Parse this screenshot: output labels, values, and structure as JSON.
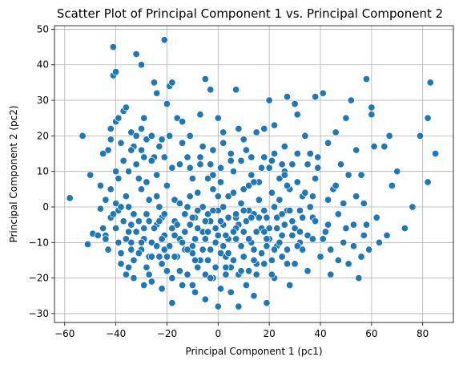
{
  "chart_data": {
    "type": "scatter",
    "title": "Scatter Plot of Principal Component 1 vs. Principal Component 2",
    "xlabel": "Principal Component 1 (pc1)",
    "ylabel": "Principal Component 2 (pc2)",
    "xlim": [
      -64,
      92
    ],
    "ylim": [
      -32.5,
      51
    ],
    "xticks": [
      -60,
      -40,
      -20,
      0,
      20,
      40,
      60,
      80
    ],
    "yticks": [
      -30,
      -20,
      -10,
      0,
      10,
      20,
      30,
      40,
      50
    ],
    "grid": true,
    "color": "#1f77b4",
    "points": [
      [
        -58,
        2.5
      ],
      [
        -53,
        20
      ],
      [
        -51,
        -10.5
      ],
      [
        -50,
        9
      ],
      [
        -49,
        -7.5
      ],
      [
        -47,
        -8
      ],
      [
        -46,
        -0.5
      ],
      [
        -45,
        -6
      ],
      [
        -44,
        -8
      ],
      [
        -43,
        16
      ],
      [
        -42,
        19
      ],
      [
        -42,
        -3
      ],
      [
        -41,
        37
      ],
      [
        -41,
        45
      ],
      [
        -40,
        24
      ],
      [
        -40,
        38
      ],
      [
        -40,
        10
      ],
      [
        -39,
        25
      ],
      [
        -39,
        -1
      ],
      [
        -38,
        -16
      ],
      [
        -37,
        13
      ],
      [
        -37,
        27
      ],
      [
        -36,
        28
      ],
      [
        -36,
        -19
      ],
      [
        -35,
        -7
      ],
      [
        -34,
        21
      ],
      [
        -34,
        -10
      ],
      [
        -33,
        -2
      ],
      [
        -32,
        43
      ],
      [
        -32,
        20
      ],
      [
        -31,
        -4
      ],
      [
        -30,
        40
      ],
      [
        -30,
        16
      ],
      [
        -30,
        -12
      ],
      [
        -29,
        25
      ],
      [
        -29,
        -22
      ],
      [
        -28,
        19
      ],
      [
        -28,
        7
      ],
      [
        -27,
        -14
      ],
      [
        -26,
        -10
      ],
      [
        -25,
        35
      ],
      [
        -25,
        14
      ],
      [
        -24,
        -5
      ],
      [
        -24,
        32
      ],
      [
        -23,
        0
      ],
      [
        -22,
        -3
      ],
      [
        -22,
        -16
      ],
      [
        -21,
        47
      ],
      [
        -21,
        14
      ],
      [
        -20,
        29
      ],
      [
        -20,
        -18
      ],
      [
        -19,
        34
      ],
      [
        -18,
        35
      ],
      [
        -18,
        -27
      ],
      [
        -17,
        2
      ],
      [
        -16,
        25
      ],
      [
        -15,
        -9
      ],
      [
        -14,
        24
      ],
      [
        -13,
        -12
      ],
      [
        -12,
        0
      ],
      [
        -12,
        14
      ],
      [
        -11,
        20
      ],
      [
        -10,
        -13
      ],
      [
        -10,
        -22
      ],
      [
        -9,
        -3
      ],
      [
        -8,
        4
      ],
      [
        -8,
        -17
      ],
      [
        -7,
        26
      ],
      [
        -7,
        12
      ],
      [
        -6,
        -7
      ],
      [
        -5,
        36
      ],
      [
        -5,
        -26
      ],
      [
        -4,
        -15
      ],
      [
        -4,
        8
      ],
      [
        -3,
        33
      ],
      [
        -3,
        -4
      ],
      [
        -2,
        -20
      ],
      [
        -2,
        16
      ],
      [
        -1,
        -10
      ],
      [
        0,
        -1
      ],
      [
        0,
        25
      ],
      [
        0,
        -28
      ],
      [
        1,
        7
      ],
      [
        1,
        -13
      ],
      [
        2,
        -5
      ],
      [
        2,
        18
      ],
      [
        3,
        -19
      ],
      [
        4,
        3
      ],
      [
        4,
        -9
      ],
      [
        5,
        -24
      ],
      [
        5,
        13
      ],
      [
        6,
        -15
      ],
      [
        7,
        33
      ],
      [
        7,
        -3
      ],
      [
        8,
        22
      ],
      [
        8,
        -28
      ],
      [
        9,
        -11
      ],
      [
        10,
        5
      ],
      [
        10,
        -7
      ],
      [
        11,
        16
      ],
      [
        12,
        -18
      ],
      [
        12,
        -1
      ],
      [
        13,
        9
      ],
      [
        14,
        -25
      ],
      [
        14,
        -12
      ],
      [
        15,
        21
      ],
      [
        16,
        2
      ],
      [
        17,
        -6
      ],
      [
        18,
        14
      ],
      [
        18,
        -16
      ],
      [
        19,
        -27
      ],
      [
        20,
        30
      ],
      [
        20,
        -9
      ],
      [
        21,
        4
      ],
      [
        22,
        23
      ],
      [
        22,
        -20
      ],
      [
        23,
        -3
      ],
      [
        24,
        8
      ],
      [
        25,
        -14
      ],
      [
        26,
        17
      ],
      [
        27,
        -1
      ],
      [
        27,
        31
      ],
      [
        28,
        -22
      ],
      [
        29,
        12
      ],
      [
        30,
        -6
      ],
      [
        30,
        29
      ],
      [
        31,
        26
      ],
      [
        32,
        -10
      ],
      [
        33,
        3
      ],
      [
        34,
        20
      ],
      [
        35,
        -18
      ],
      [
        36,
        15
      ],
      [
        37,
        -3
      ],
      [
        38,
        8
      ],
      [
        38,
        31
      ],
      [
        40,
        -14
      ],
      [
        41,
        32
      ],
      [
        42,
        -7
      ],
      [
        43,
        18
      ],
      [
        44,
        -19
      ],
      [
        45,
        5
      ],
      [
        46,
        21
      ],
      [
        47,
        -2
      ],
      [
        48,
        12
      ],
      [
        49,
        -10
      ],
      [
        50,
        25
      ],
      [
        51,
        -16
      ],
      [
        52,
        30
      ],
      [
        53,
        -5
      ],
      [
        54,
        16
      ],
      [
        55,
        -20
      ],
      [
        56,
        9
      ],
      [
        57,
        -8
      ],
      [
        58,
        36
      ],
      [
        59,
        -12
      ],
      [
        60,
        26
      ],
      [
        60,
        28
      ],
      [
        61,
        17
      ],
      [
        62,
        -3
      ],
      [
        63,
        -10
      ],
      [
        65,
        17
      ],
      [
        66,
        -8
      ],
      [
        67,
        20
      ],
      [
        68,
        6
      ],
      [
        70,
        10
      ],
      [
        73,
        -6
      ],
      [
        76,
        0
      ],
      [
        79,
        20
      ],
      [
        82,
        7
      ],
      [
        82,
        25
      ],
      [
        83,
        35
      ],
      [
        85,
        15
      ],
      [
        -46,
        6
      ],
      [
        -44,
        -9
      ],
      [
        -43,
        -12
      ],
      [
        -41,
        -2
      ],
      [
        -39,
        8
      ],
      [
        -38,
        -13
      ],
      [
        -36,
        3
      ],
      [
        -35,
        -17
      ],
      [
        -33,
        -20
      ],
      [
        -32,
        12
      ],
      [
        -31,
        -13
      ],
      [
        -30,
        5
      ],
      [
        -29,
        -9
      ],
      [
        -28,
        -17
      ],
      [
        -27,
        2
      ],
      [
        -26,
        -21
      ],
      [
        -25,
        -6
      ],
      [
        -24,
        9
      ],
      [
        -23,
        -14
      ],
      [
        -22,
        -23
      ],
      [
        -21,
        -8
      ],
      [
        -20,
        6
      ],
      [
        -19,
        -11
      ],
      [
        -18,
        -20
      ],
      [
        -17,
        -4
      ],
      [
        -16,
        -14
      ],
      [
        -15,
        1
      ],
      [
        -14,
        -22
      ],
      [
        -13,
        -7
      ],
      [
        -12,
        -19
      ],
      [
        -11,
        3
      ],
      [
        -10,
        -11
      ],
      [
        -9,
        -24
      ],
      [
        -8,
        -6
      ],
      [
        -7,
        -15
      ],
      [
        -6,
        0
      ],
      [
        -5,
        -19
      ],
      [
        -4,
        -2
      ],
      [
        -3,
        -12
      ],
      [
        -2,
        5
      ],
      [
        -1,
        -17
      ],
      [
        0,
        -8
      ],
      [
        1,
        -23
      ],
      [
        2,
        0
      ],
      [
        3,
        -14
      ],
      [
        4,
        -3
      ],
      [
        5,
        -17
      ],
      [
        6,
        4
      ],
      [
        7,
        -9
      ],
      [
        8,
        -19
      ],
      [
        9,
        1
      ],
      [
        10,
        -14
      ],
      [
        11,
        -22
      ],
      [
        12,
        6
      ],
      [
        13,
        -10
      ],
      [
        14,
        -2
      ],
      [
        15,
        -19
      ],
      [
        16,
        7
      ],
      [
        17,
        -13
      ],
      [
        18,
        -1
      ],
      [
        19,
        -9
      ],
      [
        20,
        11
      ],
      [
        21,
        -15
      ],
      [
        22,
        0
      ],
      [
        23,
        -11
      ],
      [
        24,
        2
      ],
      [
        25,
        -8
      ],
      [
        26,
        10
      ],
      [
        27,
        -12
      ],
      [
        28,
        5
      ],
      [
        29,
        -4
      ],
      [
        30,
        -16
      ],
      [
        31,
        7
      ],
      [
        32,
        -1
      ],
      [
        33,
        -12
      ],
      [
        34,
        4
      ],
      [
        35,
        -8
      ],
      [
        36,
        0
      ],
      [
        38,
        -4
      ],
      [
        39,
        11
      ],
      [
        41,
        -9
      ],
      [
        43,
        2
      ],
      [
        44,
        -12
      ],
      [
        46,
        6
      ],
      [
        47,
        -15
      ],
      [
        49,
        1
      ],
      [
        50,
        -6
      ],
      [
        51,
        9
      ],
      [
        53,
        -11
      ],
      [
        54,
        3
      ],
      [
        56,
        -14
      ],
      [
        57,
        1
      ],
      [
        58,
        -5
      ],
      [
        -45,
        15
      ],
      [
        -42,
        22
      ],
      [
        -40,
        -6
      ],
      [
        -38,
        18
      ],
      [
        -37,
        -4
      ],
      [
        -35,
        10
      ],
      [
        -34,
        -5
      ],
      [
        -33,
        17
      ],
      [
        -31,
        8
      ],
      [
        -29,
        14
      ],
      [
        -27,
        -4
      ],
      [
        -26,
        20
      ],
      [
        -24,
        -11
      ],
      [
        -23,
        17
      ],
      [
        -21,
        -2
      ],
      [
        -19,
        20
      ],
      [
        -17,
        -14
      ],
      [
        -15,
        12
      ],
      [
        -13,
        -2
      ],
      [
        -11,
        11
      ],
      [
        -9,
        -9
      ],
      [
        -7,
        14
      ],
      [
        -5,
        -4
      ],
      [
        -3,
        12
      ],
      [
        -1,
        -6
      ],
      [
        1,
        11
      ],
      [
        3,
        -8
      ],
      [
        5,
        15
      ],
      [
        7,
        -2
      ],
      [
        9,
        13
      ],
      [
        11,
        -4
      ],
      [
        13,
        14
      ],
      [
        15,
        -7
      ],
      [
        17,
        11
      ],
      [
        19,
        -3
      ],
      [
        21,
        13
      ],
      [
        23,
        -6
      ],
      [
        25,
        12
      ],
      [
        27,
        6
      ],
      [
        29,
        -8
      ],
      [
        31,
        15
      ],
      [
        33,
        -3
      ],
      [
        35,
        12
      ],
      [
        37,
        -9
      ],
      [
        39,
        14
      ],
      [
        -44,
        2
      ],
      [
        -40,
        1
      ],
      [
        -36,
        -9
      ],
      [
        -32,
        -7
      ],
      [
        -28,
        -2
      ],
      [
        -24,
        3
      ],
      [
        -20,
        -14
      ],
      [
        -16,
        -5
      ],
      [
        -12,
        -12
      ],
      [
        -8,
        -1
      ],
      [
        -4,
        -7
      ],
      [
        0,
        3
      ],
      [
        4,
        -13
      ],
      [
        8,
        -5
      ],
      [
        12,
        -9
      ],
      [
        16,
        -3
      ],
      [
        20,
        -6
      ],
      [
        24,
        -10
      ],
      [
        28,
        -1
      ],
      [
        32,
        -7
      ],
      [
        -39,
        -10
      ],
      [
        -33,
        -15
      ],
      [
        -27,
        -19
      ],
      [
        -21,
        -12
      ],
      [
        -15,
        -18
      ],
      [
        -9,
        -15
      ],
      [
        -3,
        -20
      ],
      [
        3,
        -17
      ],
      [
        9,
        -18
      ],
      [
        15,
        -16
      ],
      [
        21,
        -19
      ],
      [
        27,
        -16
      ],
      [
        -34,
        16
      ],
      [
        -30,
        22
      ],
      [
        -26,
        13
      ],
      [
        -22,
        19
      ],
      [
        -18,
        11
      ],
      [
        -14,
        18
      ],
      [
        -10,
        8
      ],
      [
        -6,
        17
      ],
      [
        -2,
        9
      ],
      [
        2,
        21
      ],
      [
        6,
        10
      ],
      [
        10,
        19
      ],
      [
        14,
        7
      ],
      [
        18,
        22
      ],
      [
        22,
        15
      ],
      [
        26,
        9
      ],
      [
        -35,
        0
      ],
      [
        -29,
        -6
      ],
      [
        -23,
        -4
      ],
      [
        -17,
        -8
      ],
      [
        -11,
        -5
      ],
      [
        -5,
        -9
      ],
      [
        1,
        -4
      ],
      [
        7,
        -6
      ],
      [
        13,
        -3
      ],
      [
        19,
        -11
      ],
      [
        25,
        -2
      ],
      [
        31,
        -11
      ],
      [
        37,
        3
      ],
      [
        43,
        -5
      ],
      [
        -42,
        5
      ],
      [
        -38,
        0
      ],
      [
        -34,
        -12
      ],
      [
        -30,
        -10
      ],
      [
        -26,
        -14
      ],
      [
        -22,
        -9
      ],
      [
        -18,
        -6
      ],
      [
        -14,
        -10
      ],
      [
        -10,
        -3
      ],
      [
        -6,
        -12
      ],
      [
        -2,
        -1
      ],
      [
        2,
        -11
      ],
      [
        6,
        -7
      ],
      [
        10,
        -1
      ],
      [
        14,
        -15
      ],
      [
        18,
        -7
      ],
      [
        22,
        -12
      ],
      [
        26,
        -5
      ]
    ]
  }
}
